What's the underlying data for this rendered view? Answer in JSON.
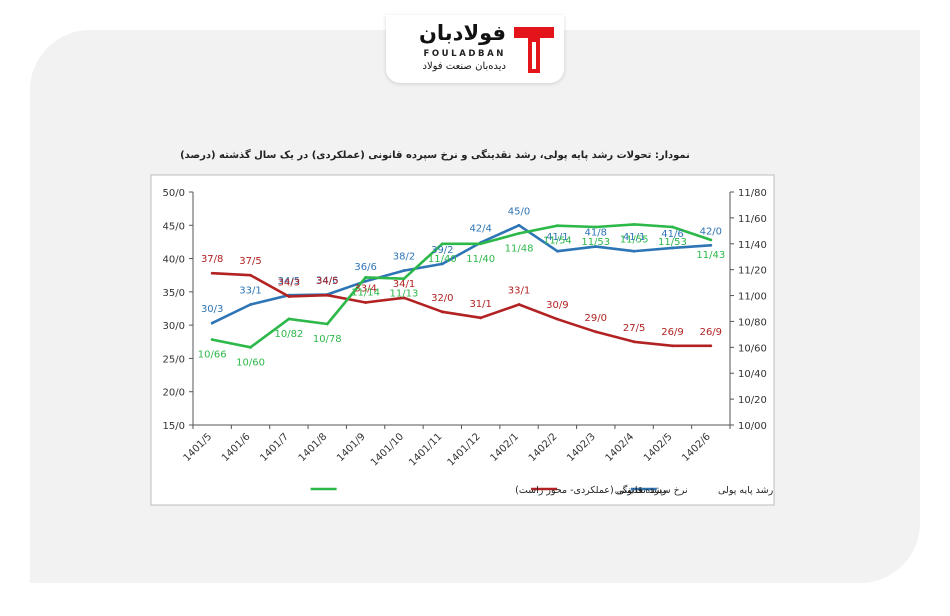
{
  "logo": {
    "name_fa": "فولادبان",
    "name_en": "FOULADBAN",
    "subtitle": "دیده‌بان صنعت فولاد",
    "brand_color": "#e3151a"
  },
  "chart_data": {
    "type": "line",
    "title": "نمودار: تحولات رشد پایه پولی، رشد نقدینگی و نرخ سپرده قانونی (عملکردی) در یک سال گذشته (درصد)",
    "categories": [
      "1401/5",
      "1401/6",
      "1401/7",
      "1401/8",
      "1401/9",
      "1401/10",
      "1401/11",
      "1401/12",
      "1402/1",
      "1402/2",
      "1402/3",
      "1402/4",
      "1402/5",
      "1402/6"
    ],
    "left_axis": {
      "min": 15,
      "max": 50,
      "step": 5,
      "tick_labels": [
        "15/0",
        "20/0",
        "25/0",
        "30/0",
        "35/0",
        "40/0",
        "45/0",
        "50/0"
      ]
    },
    "right_axis": {
      "min": 10.0,
      "max": 11.8,
      "step": 0.2,
      "tick_labels": [
        "10/00",
        "10/20",
        "10/40",
        "10/60",
        "10/80",
        "11/00",
        "11/20",
        "11/40",
        "11/60",
        "11/80"
      ]
    },
    "grid": false,
    "legend_position": "bottom",
    "series": [
      {
        "name": "رشد پایه پولی",
        "axis": "left",
        "color": "#2e75b6",
        "values": [
          30.3,
          33.1,
          34.5,
          34.6,
          36.6,
          38.2,
          39.2,
          42.4,
          45.0,
          41.1,
          41.8,
          41.1,
          41.6,
          42.0
        ],
        "labels": [
          "30/3",
          "33/1",
          "34/5",
          "34/6",
          "36/6",
          "38/2",
          "39/2",
          "42/4",
          "45/0",
          "41/1",
          "41/8",
          "41/1",
          "41/6",
          "42/0"
        ]
      },
      {
        "name": "رشد نقدینگی",
        "axis": "left",
        "color": "#b22222",
        "values": [
          37.8,
          37.5,
          34.3,
          34.5,
          33.4,
          34.1,
          32.0,
          31.1,
          33.1,
          30.9,
          29.0,
          27.5,
          26.9,
          26.9
        ],
        "labels": [
          "37/8",
          "37/5",
          "34/3",
          "34/5",
          "33/4",
          "34/1",
          "32/0",
          "31/1",
          "33/1",
          "30/9",
          "29/0",
          "27/5",
          "26/9",
          "26/9"
        ]
      },
      {
        "name": "نرخ سپرده قانونی (عملکردی- محور راست)",
        "axis": "right",
        "color": "#2db84a",
        "values": [
          10.66,
          10.6,
          10.82,
          10.78,
          11.14,
          11.13,
          11.4,
          11.4,
          11.48,
          11.54,
          11.53,
          11.55,
          11.53,
          11.43
        ],
        "labels": [
          "10/66",
          "10/60",
          "10/82",
          "10/78",
          "11/14",
          "11/13",
          "11/40",
          "11/40",
          "11/48",
          "11/54",
          "11/53",
          "11/55",
          "11/53",
          "11/43"
        ]
      }
    ]
  }
}
